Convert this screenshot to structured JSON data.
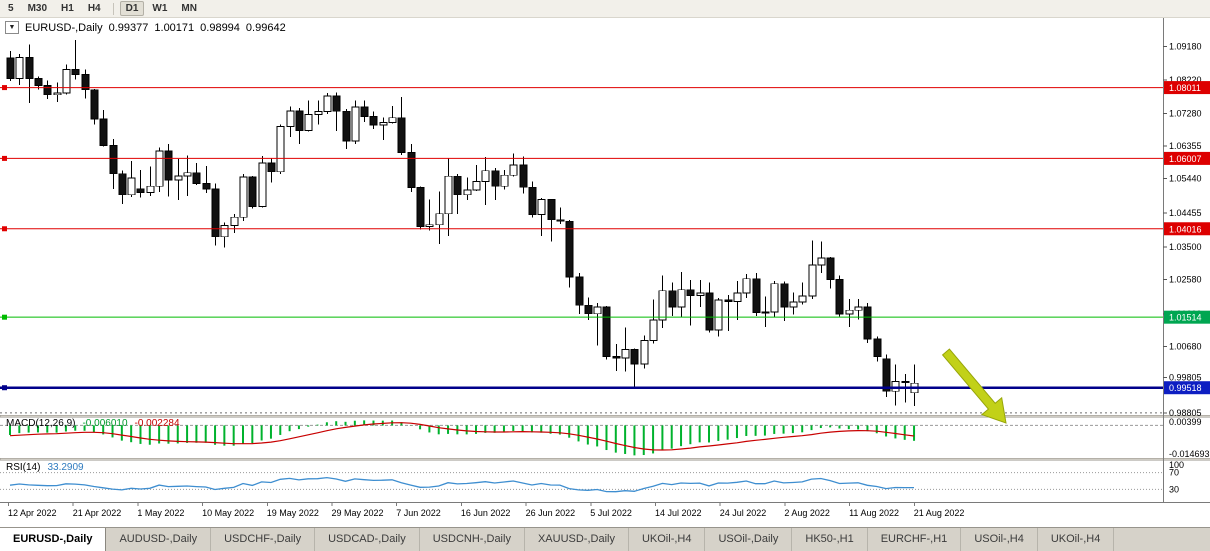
{
  "toolbar": {
    "timeframes": [
      {
        "label": "5",
        "active": false
      },
      {
        "label": "M30",
        "active": false
      },
      {
        "label": "H1",
        "active": false
      },
      {
        "label": "H4",
        "active": false
      },
      {
        "label": "D1",
        "active": true
      },
      {
        "label": "W1",
        "active": false
      },
      {
        "label": "MN",
        "active": false
      }
    ]
  },
  "chart": {
    "title": {
      "symbol": "EURUSD-,Daily",
      "open": "0.99377",
      "high": "1.00171",
      "low": "0.98994",
      "close": "0.99642"
    },
    "price_axis_ticks": [
      "1.09180",
      "1.08220",
      "1.07280",
      "1.06355",
      "1.05440",
      "1.04455",
      "1.03500",
      "1.02580",
      "1.01600",
      "1.00680",
      "0.99805",
      "0.98805"
    ],
    "date_axis_labels": [
      "12 Apr 2022",
      "21 Apr 2022",
      "1 May 2022",
      "10 May 2022",
      "19 May 2022",
      "29 May 2022",
      "7 Jun 2022",
      "16 Jun 2022",
      "26 Jun 2022",
      "5 Jul 2022",
      "14 Jul 2022",
      "24 Jul 2022",
      "2 Aug 2022",
      "11 Aug 2022",
      "21 Aug 2022"
    ],
    "levels": [
      {
        "label": "1.08011",
        "price": 1.08011,
        "line_color": "#e00000",
        "badge_color": "#dd0000",
        "width": 1
      },
      {
        "label": "1.06007",
        "price": 1.06007,
        "line_color": "#e00000",
        "badge_color": "#dd0000",
        "width": 1
      },
      {
        "label": "1.04016",
        "price": 1.04016,
        "line_color": "#e00000",
        "badge_color": "#dd0000",
        "width": 1
      },
      {
        "label": "1.01514",
        "price": 1.01514,
        "line_color": "#00bb00",
        "badge_color": "#00a651",
        "width": 1
      },
      {
        "label": "0.99518",
        "price": 0.99518,
        "line_color": "#00008b",
        "badge_color": "#0d1ec2",
        "width": 2.5
      }
    ],
    "dashed_level": {
      "price": 0.98805,
      "color": "#6e6e6e"
    }
  },
  "indicators": {
    "macd": {
      "name": "MACD(12,26,9)",
      "main_value": "-0.006010",
      "signal_value": "-0.002284",
      "axis_ticks": [
        "0.00399",
        "-0.014693"
      ],
      "histogram_color": "#00b22d",
      "signal_color": "#c80000"
    },
    "rsi": {
      "name": "RSI(14)",
      "value": "33.2909",
      "axis_ticks": [
        "100",
        "70",
        "30"
      ],
      "levels": [
        70,
        30
      ],
      "line_color": "#3e8ed0"
    }
  },
  "annotations": {
    "arrow": {
      "shape": "down-right-arrow",
      "color": "#c2d118",
      "outline": "#97a509"
    }
  },
  "tabs": [
    {
      "label": "EURUSD-,Daily",
      "active": true
    },
    {
      "label": "AUDUSD-,Daily",
      "active": false
    },
    {
      "label": "USDCHF-,Daily",
      "active": false
    },
    {
      "label": "USDCAD-,Daily",
      "active": false
    },
    {
      "label": "USDCNH-,Daily",
      "active": false
    },
    {
      "label": "XAUUSD-,Daily",
      "active": false
    },
    {
      "label": "UKOil-,H4",
      "active": false
    },
    {
      "label": "USOil-,Daily",
      "active": false
    },
    {
      "label": "HK50-,H1",
      "active": false
    },
    {
      "label": "EURCHF-,H1",
      "active": false
    },
    {
      "label": "USOil-,H4",
      "active": false
    },
    {
      "label": "UKOil-,H4",
      "active": false
    }
  ],
  "chart_data": {
    "type": "candlestick",
    "title": "EURUSD-,Daily",
    "x_range": [
      "12 Apr 2022",
      "21 Aug 2022"
    ],
    "y_axis_range": [
      0.98746,
      1.0998
    ],
    "horizontal_levels": [
      1.08011,
      1.06007,
      1.04016,
      1.01514,
      0.99518,
      0.98805
    ],
    "last_bar_ohlc": [
      0.99377,
      1.00171,
      0.98994,
      0.99642
    ],
    "macd_last": [
      -0.00601,
      -0.002284
    ],
    "rsi_last": 33.2909,
    "ohlc": [
      [
        1.0885,
        1.0904,
        1.082,
        1.0827
      ],
      [
        1.0827,
        1.0896,
        1.0809,
        1.0886
      ],
      [
        1.0886,
        1.0923,
        1.0757,
        1.0827
      ],
      [
        1.0827,
        1.0832,
        1.0796,
        1.0807
      ],
      [
        1.0807,
        1.0821,
        1.0769,
        1.0781
      ],
      [
        1.0781,
        1.0815,
        1.0761,
        1.0786
      ],
      [
        1.0786,
        1.0867,
        1.0782,
        1.0852
      ],
      [
        1.0852,
        1.0936,
        1.0824,
        1.0838
      ],
      [
        1.0838,
        1.0852,
        1.077,
        1.0795
      ],
      [
        1.0795,
        1.0797,
        1.0697,
        1.0712
      ],
      [
        1.0712,
        1.0738,
        1.0635,
        1.0637
      ],
      [
        1.0637,
        1.0655,
        1.0514,
        1.0557
      ],
      [
        1.0557,
        1.0567,
        1.0471,
        1.0498
      ],
      [
        1.0498,
        1.0593,
        1.0492,
        1.0545
      ],
      [
        1.0515,
        1.0568,
        1.049,
        1.0504
      ],
      [
        1.0504,
        1.0578,
        1.0494,
        1.0522
      ],
      [
        1.0522,
        1.0632,
        1.0506,
        1.0622
      ],
      [
        1.0622,
        1.0642,
        1.0493,
        1.054
      ],
      [
        1.054,
        1.0599,
        1.0483,
        1.0551
      ],
      [
        1.0551,
        1.0609,
        1.0495,
        1.056
      ],
      [
        1.056,
        1.0588,
        1.0526,
        1.053
      ],
      [
        1.053,
        1.0579,
        1.0503,
        1.0514
      ],
      [
        1.0514,
        1.0529,
        1.0354,
        1.0379
      ],
      [
        1.0379,
        1.0419,
        1.0348,
        1.0411
      ],
      [
        1.0411,
        1.0443,
        1.039,
        1.0434
      ],
      [
        1.0434,
        1.0556,
        1.0424,
        1.0548
      ],
      [
        1.0548,
        1.0551,
        1.0459,
        1.0465
      ],
      [
        1.0465,
        1.0607,
        1.0462,
        1.0588
      ],
      [
        1.0588,
        1.0602,
        1.0532,
        1.0563
      ],
      [
        1.0563,
        1.0697,
        1.0556,
        1.0691
      ],
      [
        1.0691,
        1.0748,
        1.0661,
        1.0735
      ],
      [
        1.0735,
        1.0744,
        1.0642,
        1.068
      ],
      [
        1.068,
        1.0765,
        1.0677,
        1.0725
      ],
      [
        1.0725,
        1.0765,
        1.0697,
        1.0733
      ],
      [
        1.0733,
        1.0786,
        1.0726,
        1.0777
      ],
      [
        1.0777,
        1.0787,
        1.0678,
        1.0734
      ],
      [
        1.0734,
        1.074,
        1.0627,
        1.065
      ],
      [
        1.065,
        1.0764,
        1.0641,
        1.0746
      ],
      [
        1.0746,
        1.0764,
        1.0704,
        1.0719
      ],
      [
        1.0719,
        1.0734,
        1.0684,
        1.0695
      ],
      [
        1.0695,
        1.0716,
        1.0653,
        1.0702
      ],
      [
        1.0702,
        1.0749,
        1.07,
        1.0716
      ],
      [
        1.0716,
        1.0774,
        1.0611,
        1.0617
      ],
      [
        1.0617,
        1.0642,
        1.0505,
        1.0518
      ],
      [
        1.0518,
        1.0521,
        1.0399,
        1.0408
      ],
      [
        1.0408,
        1.0485,
        1.0396,
        1.0413
      ],
      [
        1.0413,
        1.0507,
        1.0359,
        1.0444
      ],
      [
        1.0444,
        1.0601,
        1.0381,
        1.055
      ],
      [
        1.055,
        1.0557,
        1.0444,
        1.0498
      ],
      [
        1.0498,
        1.0546,
        1.0483,
        1.0511
      ],
      [
        1.0511,
        1.0582,
        1.0508,
        1.0535
      ],
      [
        1.0535,
        1.0605,
        1.0469,
        1.0566
      ],
      [
        1.0566,
        1.0574,
        1.0483,
        1.0522
      ],
      [
        1.0522,
        1.0568,
        1.0513,
        1.0553
      ],
      [
        1.0553,
        1.0615,
        1.0549,
        1.0582
      ],
      [
        1.0582,
        1.0606,
        1.0501,
        1.0519
      ],
      [
        1.0519,
        1.0536,
        1.0434,
        1.0442
      ],
      [
        1.0442,
        1.0489,
        1.0381,
        1.0484
      ],
      [
        1.0484,
        1.0486,
        1.0365,
        1.0427
      ],
      [
        1.0427,
        1.0462,
        1.0415,
        1.0423
      ],
      [
        1.0423,
        1.0426,
        1.0235,
        1.0265
      ],
      [
        1.0265,
        1.0276,
        1.0161,
        1.0185
      ],
      [
        1.0185,
        1.0207,
        1.0144,
        1.0161
      ],
      [
        1.0161,
        1.0191,
        1.0071,
        1.018
      ],
      [
        1.018,
        1.0183,
        1.0032,
        1.004
      ],
      [
        1.004,
        1.0075,
        0.9999,
        1.0036
      ],
      [
        1.0036,
        1.0122,
        0.9998,
        1.006
      ],
      [
        1.006,
        1.0063,
        0.9952,
        1.0019
      ],
      [
        1.0019,
        1.01,
        1.0006,
        1.0085
      ],
      [
        1.0085,
        1.0201,
        1.0077,
        1.0143
      ],
      [
        1.0143,
        1.0269,
        1.0121,
        1.0226
      ],
      [
        1.0226,
        1.025,
        1.0155,
        1.018
      ],
      [
        1.018,
        1.0279,
        1.0151,
        1.0229
      ],
      [
        1.0229,
        1.0256,
        1.0128,
        1.0213
      ],
      [
        1.0213,
        1.0257,
        1.018,
        1.022
      ],
      [
        1.022,
        1.025,
        1.0108,
        1.0115
      ],
      [
        1.0115,
        1.0205,
        1.0097,
        1.02
      ],
      [
        1.02,
        1.0214,
        1.0113,
        1.0196
      ],
      [
        1.0196,
        1.0254,
        1.0144,
        1.022
      ],
      [
        1.022,
        1.0274,
        1.0206,
        1.026
      ],
      [
        1.026,
        1.0276,
        1.0155,
        1.0165
      ],
      [
        1.0165,
        1.021,
        1.0123,
        1.0166
      ],
      [
        1.0166,
        1.0254,
        1.0151,
        1.0246
      ],
      [
        1.0246,
        1.0252,
        1.0141,
        1.018
      ],
      [
        1.018,
        1.0221,
        1.0159,
        1.0194
      ],
      [
        1.0194,
        1.0249,
        1.0187,
        1.0211
      ],
      [
        1.0211,
        1.0369,
        1.0203,
        1.0299
      ],
      [
        1.0299,
        1.0365,
        1.0276,
        1.0319
      ],
      [
        1.0319,
        1.0322,
        1.0232,
        1.0258
      ],
      [
        1.0258,
        1.0269,
        1.0154,
        1.016
      ],
      [
        1.016,
        1.0203,
        1.0124,
        1.0171
      ],
      [
        1.0171,
        1.0203,
        1.0145,
        1.018
      ],
      [
        1.018,
        1.0192,
        1.0079,
        1.009
      ],
      [
        1.009,
        1.0097,
        1.0026,
        1.004
      ],
      [
        1.0034,
        1.0046,
        0.9926,
        0.9942
      ],
      [
        0.9942,
        1.0018,
        0.9901,
        0.9969
      ],
      [
        0.9969,
        0.999,
        0.991,
        0.9966
      ],
      [
        0.99377,
        1.00171,
        0.98994,
        0.99642
      ]
    ]
  }
}
